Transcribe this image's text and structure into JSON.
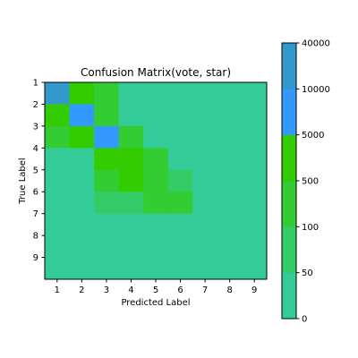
{
  "chart_data": {
    "type": "heatmap",
    "title": "Confusion Matrix(vote, star)",
    "xlabel": "Predicted Label",
    "ylabel": "True Label",
    "x_categories": [
      "1",
      "2",
      "3",
      "4",
      "5",
      "6",
      "7",
      "8",
      "9"
    ],
    "y_categories": [
      "1",
      "2",
      "3",
      "4",
      "5",
      "6",
      "7",
      "8",
      "9"
    ],
    "values": [
      [
        15000,
        800,
        400,
        20,
        0,
        0,
        0,
        0,
        0
      ],
      [
        900,
        7000,
        300,
        20,
        0,
        0,
        0,
        0,
        0
      ],
      [
        200,
        700,
        8000,
        150,
        10,
        0,
        0,
        0,
        0
      ],
      [
        20,
        20,
        700,
        700,
        150,
        10,
        0,
        0,
        0
      ],
      [
        10,
        10,
        250,
        700,
        150,
        60,
        0,
        0,
        0
      ],
      [
        5,
        10,
        60,
        60,
        150,
        150,
        10,
        0,
        0
      ],
      [
        0,
        0,
        5,
        10,
        20,
        20,
        5,
        0,
        0
      ],
      [
        0,
        0,
        0,
        0,
        5,
        5,
        0,
        0,
        0
      ],
      [
        0,
        0,
        0,
        0,
        0,
        0,
        0,
        0,
        0
      ]
    ],
    "colorbar": {
      "tick_labels": [
        "0",
        "50",
        "100",
        "500",
        "5000",
        "10000",
        "40000"
      ],
      "bounds": [
        0,
        50,
        100,
        500,
        5000,
        10000,
        40000
      ],
      "colors": [
        "#33cc99",
        "#33cc66",
        "#33cc33",
        "#33cc00",
        "#3399ff",
        "#3399cc"
      ]
    }
  }
}
